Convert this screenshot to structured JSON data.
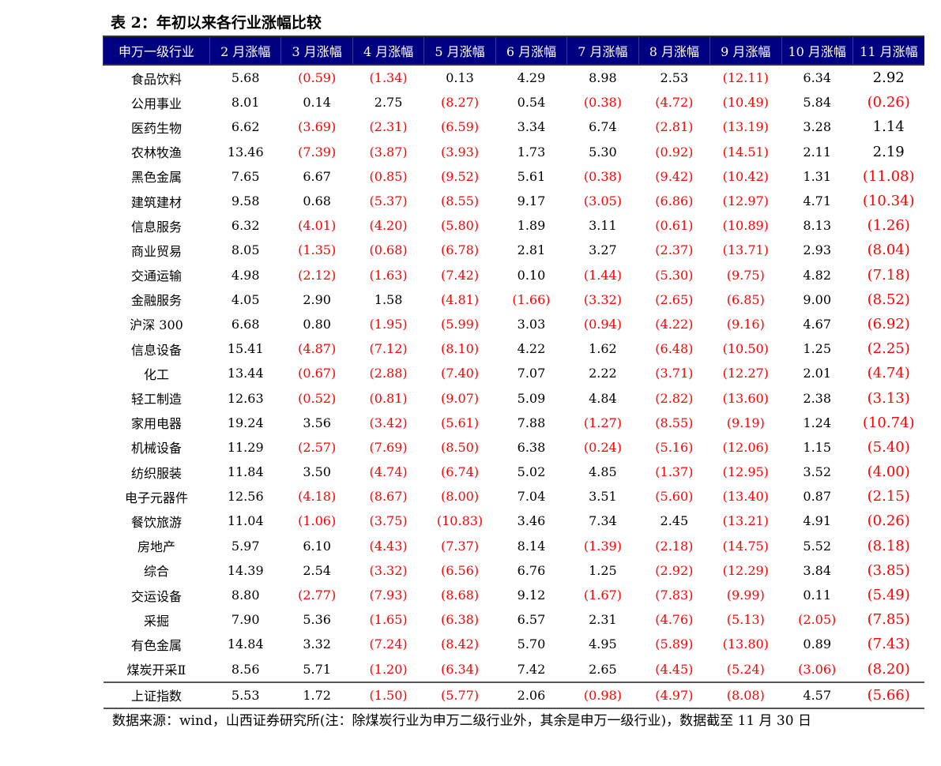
{
  "title": "表 2：年初以来各行业涨幅比较",
  "colors": {
    "header_bg": "#000080",
    "header_text": "#ffffff",
    "negative": "#ff0000"
  },
  "headers": [
    "申万一级行业",
    "2 月涨幅",
    "3 月涨幅",
    "4 月涨幅",
    "5 月涨幅",
    "6 月涨幅",
    "7 月涨幅",
    "8 月涨幅",
    "9 月涨幅",
    "10 月涨幅",
    "11 月涨幅"
  ],
  "rows": [
    [
      "食品饮料",
      "5.68",
      "(0.59)",
      "(1.34)",
      "0.13",
      "4.29",
      "8.98",
      "2.53",
      "(12.11)",
      "6.34",
      "2.92"
    ],
    [
      "公用事业",
      "8.01",
      "0.14",
      "2.75",
      "(8.27)",
      "0.54",
      "(0.38)",
      "(4.72)",
      "(10.49)",
      "5.84",
      "(0.26)"
    ],
    [
      "医药生物",
      "6.62",
      "(3.69)",
      "(2.31)",
      "(6.59)",
      "3.34",
      "6.74",
      "(2.81)",
      "(13.19)",
      "3.28",
      "1.14"
    ],
    [
      "农林牧渔",
      "13.46",
      "(7.39)",
      "(3.87)",
      "(3.93)",
      "1.73",
      "5.30",
      "(0.92)",
      "(14.51)",
      "2.11",
      "2.19"
    ],
    [
      "黑色金属",
      "7.65",
      "6.67",
      "(0.85)",
      "(9.52)",
      "5.61",
      "(0.38)",
      "(9.42)",
      "(10.42)",
      "1.31",
      "(11.08)"
    ],
    [
      "建筑建材",
      "9.58",
      "0.68",
      "(5.37)",
      "(8.55)",
      "9.17",
      "(3.05)",
      "(6.86)",
      "(12.97)",
      "4.71",
      "(10.34)"
    ],
    [
      "信息服务",
      "6.32",
      "(4.01)",
      "(4.20)",
      "(5.80)",
      "1.89",
      "3.11",
      "(0.61)",
      "(10.89)",
      "8.13",
      "(1.26)"
    ],
    [
      "商业贸易",
      "8.05",
      "(1.35)",
      "(0.68)",
      "(6.78)",
      "2.81",
      "3.27",
      "(2.37)",
      "(13.71)",
      "2.93",
      "(8.04)"
    ],
    [
      "交通运输",
      "4.98",
      "(2.12)",
      "(1.63)",
      "(7.42)",
      "0.10",
      "(1.44)",
      "(5.30)",
      "(9.75)",
      "4.82",
      "(7.18)"
    ],
    [
      "金融服务",
      "4.05",
      "2.90",
      "1.58",
      "(4.81)",
      "(1.66)",
      "(3.32)",
      "(2.65)",
      "(6.85)",
      "9.00",
      "(8.52)"
    ],
    [
      "沪深 300",
      "6.68",
      "0.80",
      "(1.95)",
      "(5.99)",
      "3.03",
      "(0.94)",
      "(4.22)",
      "(9.16)",
      "4.67",
      "(6.92)"
    ],
    [
      "信息设备",
      "15.41",
      "(4.87)",
      "(7.12)",
      "(8.10)",
      "4.22",
      "1.62",
      "(6.48)",
      "(10.50)",
      "1.25",
      "(2.25)"
    ],
    [
      "化工",
      "13.44",
      "(0.67)",
      "(2.88)",
      "(7.40)",
      "7.07",
      "2.22",
      "(3.71)",
      "(12.27)",
      "2.01",
      "(4.74)"
    ],
    [
      "轻工制造",
      "12.63",
      "(0.52)",
      "(0.81)",
      "(9.07)",
      "5.09",
      "4.84",
      "(2.82)",
      "(13.60)",
      "2.38",
      "(3.13)"
    ],
    [
      "家用电器",
      "19.24",
      "3.56",
      "(3.42)",
      "(5.61)",
      "7.88",
      "(1.27)",
      "(8.55)",
      "(9.19)",
      "1.24",
      "(10.74)"
    ],
    [
      "机械设备",
      "11.29",
      "(2.57)",
      "(7.69)",
      "(8.50)",
      "6.38",
      "(0.24)",
      "(5.16)",
      "(12.06)",
      "1.15",
      "(5.40)"
    ],
    [
      "纺织服装",
      "11.84",
      "3.50",
      "(4.74)",
      "(6.74)",
      "5.02",
      "4.85",
      "(1.37)",
      "(12.95)",
      "3.52",
      "(4.00)"
    ],
    [
      "电子元器件",
      "12.56",
      "(4.18)",
      "(8.67)",
      "(8.00)",
      "7.04",
      "3.51",
      "(5.60)",
      "(13.40)",
      "0.87",
      "(2.15)"
    ],
    [
      "餐饮旅游",
      "11.04",
      "(1.06)",
      "(3.75)",
      "(10.83)",
      "3.46",
      "7.34",
      "2.45",
      "(13.21)",
      "4.91",
      "(0.26)"
    ],
    [
      "房地产",
      "5.97",
      "6.10",
      "(4.43)",
      "(7.37)",
      "8.14",
      "(1.39)",
      "(2.18)",
      "(14.75)",
      "5.52",
      "(8.18)"
    ],
    [
      "综合",
      "14.39",
      "2.54",
      "(3.32)",
      "(6.56)",
      "6.76",
      "1.25",
      "(2.92)",
      "(12.29)",
      "3.84",
      "(3.85)"
    ],
    [
      "交运设备",
      "8.80",
      "(2.77)",
      "(7.93)",
      "(8.68)",
      "9.12",
      "(1.67)",
      "(7.83)",
      "(9.99)",
      "0.11",
      "(5.49)"
    ],
    [
      "采掘",
      "7.90",
      "5.36",
      "(1.65)",
      "(6.38)",
      "6.57",
      "2.31",
      "(4.76)",
      "(5.13)",
      "(2.05)",
      "(7.85)"
    ],
    [
      "有色金属",
      "14.84",
      "3.32",
      "(7.24)",
      "(8.42)",
      "5.70",
      "4.95",
      "(5.89)",
      "(13.80)",
      "0.89",
      "(7.43)"
    ],
    [
      "煤炭开采Ⅱ",
      "8.56",
      "5.71",
      "(1.20)",
      "(6.34)",
      "7.42",
      "2.65",
      "(4.45)",
      "(5.24)",
      "(3.06)",
      "(8.20)"
    ]
  ],
  "index_row": [
    "上证指数",
    "5.53",
    "1.72",
    "(1.50)",
    "(5.77)",
    "2.06",
    "(0.98)",
    "(4.97)",
    "(8.08)",
    "4.57",
    "(5.66)"
  ],
  "source": "数据来源：wind，山西证券研究所(注：除煤炭行业为申万二级行业外，其余是申万一级行业)，数据截至 11 月 30 日"
}
